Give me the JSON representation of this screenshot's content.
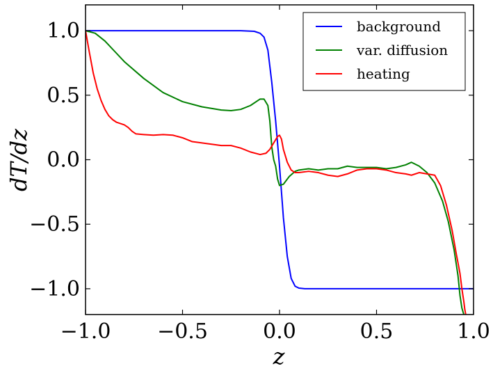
{
  "chart_data": {
    "type": "line",
    "title": "",
    "xlabel": "z",
    "ylabel": "dT/dz",
    "xlim": [
      -1.0,
      1.0
    ],
    "ylim": [
      -1.2,
      1.2
    ],
    "grid": false,
    "legend_position": "top-right",
    "x_ticks": [
      -1.0,
      -0.5,
      0.0,
      0.5,
      1.0
    ],
    "x_tick_labels": [
      "−1.0",
      "−0.5",
      "0.0",
      "0.5",
      "1.0"
    ],
    "y_ticks": [
      1.0,
      0.5,
      0.0,
      -0.5,
      -1.0
    ],
    "y_tick_labels": [
      "1.0",
      "0.5",
      "0.0",
      "−0.5",
      "−1.0"
    ],
    "series": [
      {
        "name": "background",
        "color": "#0000ff",
        "x": [
          -1.0,
          -0.5,
          -0.2,
          -0.13,
          -0.1,
          -0.08,
          -0.06,
          -0.04,
          -0.02,
          0.0,
          0.02,
          0.04,
          0.06,
          0.08,
          0.1,
          0.13,
          0.2,
          0.5,
          1.0
        ],
        "y": [
          1.0,
          1.0,
          1.0,
          0.995,
          0.98,
          0.95,
          0.85,
          0.6,
          0.3,
          -0.05,
          -0.45,
          -0.75,
          -0.92,
          -0.98,
          -0.995,
          -1.0,
          -1.0,
          -1.0,
          -1.0
        ]
      },
      {
        "name": "var. diffusion",
        "color": "#008000",
        "x": [
          -1.0,
          -0.95,
          -0.9,
          -0.85,
          -0.8,
          -0.7,
          -0.6,
          -0.5,
          -0.4,
          -0.3,
          -0.25,
          -0.2,
          -0.15,
          -0.1,
          -0.08,
          -0.06,
          -0.05,
          -0.04,
          -0.03,
          -0.02,
          -0.01,
          0.0,
          0.02,
          0.05,
          0.08,
          0.1,
          0.15,
          0.2,
          0.25,
          0.3,
          0.35,
          0.4,
          0.45,
          0.5,
          0.55,
          0.6,
          0.65,
          0.68,
          0.72,
          0.76,
          0.8,
          0.84,
          0.87,
          0.9,
          0.92,
          0.93,
          0.94,
          0.95
        ],
        "y": [
          1.0,
          0.98,
          0.92,
          0.84,
          0.76,
          0.63,
          0.52,
          0.45,
          0.41,
          0.385,
          0.38,
          0.39,
          0.42,
          0.47,
          0.47,
          0.42,
          0.3,
          0.1,
          0.0,
          -0.05,
          -0.15,
          -0.2,
          -0.19,
          -0.13,
          -0.09,
          -0.08,
          -0.07,
          -0.08,
          -0.07,
          -0.07,
          -0.05,
          -0.06,
          -0.06,
          -0.06,
          -0.07,
          -0.06,
          -0.04,
          -0.02,
          -0.05,
          -0.1,
          -0.18,
          -0.32,
          -0.48,
          -0.7,
          -0.9,
          -1.05,
          -1.15,
          -1.2
        ]
      },
      {
        "name": "heating",
        "color": "#ff0000",
        "x": [
          -1.0,
          -0.98,
          -0.96,
          -0.94,
          -0.92,
          -0.9,
          -0.88,
          -0.86,
          -0.84,
          -0.82,
          -0.8,
          -0.78,
          -0.76,
          -0.74,
          -0.7,
          -0.65,
          -0.6,
          -0.55,
          -0.5,
          -0.45,
          -0.4,
          -0.35,
          -0.3,
          -0.25,
          -0.2,
          -0.15,
          -0.1,
          -0.07,
          -0.05,
          -0.03,
          -0.01,
          0.0,
          0.01,
          0.02,
          0.04,
          0.06,
          0.08,
          0.1,
          0.15,
          0.2,
          0.25,
          0.3,
          0.35,
          0.4,
          0.45,
          0.5,
          0.55,
          0.6,
          0.65,
          0.68,
          0.72,
          0.76,
          0.8,
          0.83,
          0.86,
          0.89,
          0.91,
          0.93,
          0.94,
          0.95,
          0.955,
          0.96
        ],
        "y": [
          1.0,
          0.83,
          0.67,
          0.55,
          0.46,
          0.39,
          0.34,
          0.31,
          0.29,
          0.28,
          0.27,
          0.25,
          0.22,
          0.2,
          0.195,
          0.19,
          0.195,
          0.19,
          0.17,
          0.14,
          0.13,
          0.12,
          0.11,
          0.11,
          0.09,
          0.06,
          0.04,
          0.05,
          0.08,
          0.13,
          0.18,
          0.19,
          0.16,
          0.08,
          -0.02,
          -0.08,
          -0.1,
          -0.1,
          -0.09,
          -0.1,
          -0.12,
          -0.13,
          -0.11,
          -0.08,
          -0.07,
          -0.07,
          -0.08,
          -0.1,
          -0.11,
          -0.12,
          -0.1,
          -0.11,
          -0.12,
          -0.2,
          -0.35,
          -0.55,
          -0.72,
          -0.88,
          -1.0,
          -1.1,
          -1.16,
          -1.2
        ]
      }
    ]
  }
}
